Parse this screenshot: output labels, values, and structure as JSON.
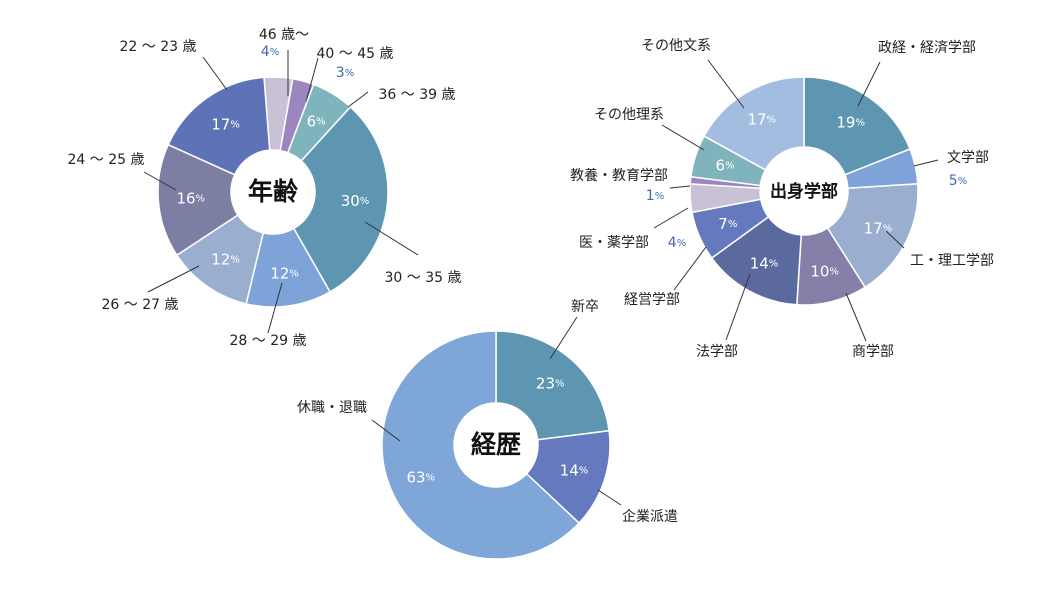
{
  "chart_data": [
    {
      "type": "pie",
      "title": "年齢",
      "unit": "%",
      "colors": {
        "a46": "#c9c2d6",
        "a40": "#9b86c0",
        "a36": "#7fb4bc",
        "a30": "#5e96b1",
        "a28": "#7ea3d8",
        "a26": "#9aaed0",
        "a24": "#7d7ea4",
        "a22": "#5e72b7"
      },
      "slices": [
        {
          "label": "46 歳～",
          "value": 4,
          "value_label": "4%",
          "color_key": "a46",
          "pct_inside": false
        },
        {
          "label": "40 ～ 45 歳",
          "value": 3,
          "value_label": "3%",
          "color_key": "a40",
          "pct_inside": false
        },
        {
          "label": "36 ～ 39 歳",
          "value": 6,
          "value_label": "6%",
          "color_key": "a36",
          "pct_inside": true
        },
        {
          "label": "30 ～ 35 歳",
          "value": 30,
          "value_label": "30%",
          "color_key": "a30",
          "pct_inside": true
        },
        {
          "label": "28 ～ 29 歳",
          "value": 12,
          "value_label": "12%",
          "color_key": "a28",
          "pct_inside": true
        },
        {
          "label": "26 ～ 27 歳",
          "value": 12,
          "value_label": "12%",
          "color_key": "a26",
          "pct_inside": true
        },
        {
          "label": "24 ～ 25 歳",
          "value": 16,
          "value_label": "16%",
          "color_key": "a24",
          "pct_inside": true
        },
        {
          "label": "22 ～ 23 歳",
          "value": 17,
          "value_label": "17%",
          "color_key": "a22",
          "pct_inside": true
        }
      ]
    },
    {
      "type": "pie",
      "title": "出身学部",
      "unit": "%",
      "colors": {
        "seikei": "#5e96b1",
        "bun": "#7ea3d8",
        "riko": "#9aaed0",
        "sho": "#8480a8",
        "ho": "#5a6a9e",
        "keiei": "#6579bf",
        "iyaku": "#c9c2d6",
        "kyoiku": "#9b86c0",
        "sonotari": "#7fb4bc",
        "sonotabun": "#a3bde0"
      },
      "slices": [
        {
          "label": "政経・経済学部",
          "value": 19,
          "value_label": "19%",
          "color_key": "seikei",
          "pct_inside": true
        },
        {
          "label": "文学部",
          "value": 5,
          "value_label": "5%",
          "color_key": "bun",
          "pct_inside": false
        },
        {
          "label": "工・理工学部",
          "value": 17,
          "value_label": "17%",
          "color_key": "riko",
          "pct_inside": true
        },
        {
          "label": "商学部",
          "value": 10,
          "value_label": "10%",
          "color_key": "sho",
          "pct_inside": true
        },
        {
          "label": "法学部",
          "value": 14,
          "value_label": "14%",
          "color_key": "ho",
          "pct_inside": true
        },
        {
          "label": "経営学部",
          "value": 7,
          "value_label": "7%",
          "color_key": "keiei",
          "pct_inside": true
        },
        {
          "label": "医・薬学部",
          "value": 4,
          "value_label": "4%",
          "color_key": "iyaku",
          "pct_inside": false
        },
        {
          "label": "教養・教育学部",
          "value": 1,
          "value_label": "1%",
          "color_key": "kyoiku",
          "pct_inside": false
        },
        {
          "label": "その他理系",
          "value": 6,
          "value_label": "6%",
          "color_key": "sonotari",
          "pct_inside": true
        },
        {
          "label": "その他文系",
          "value": 17,
          "value_label": "17%",
          "color_key": "sonotabun",
          "pct_inside": true
        }
      ]
    },
    {
      "type": "pie",
      "title": "経歴",
      "unit": "%",
      "colors": {
        "shinsotsu": "#5e96b1",
        "kigyo": "#6579bf",
        "kyushoku": "#7fa6d8"
      },
      "slices": [
        {
          "label": "新卒",
          "value": 23,
          "value_label": "23%",
          "color_key": "shinsotsu",
          "pct_inside": true
        },
        {
          "label": "企業派遣",
          "value": 14,
          "value_label": "14%",
          "color_key": "kigyo",
          "pct_inside": true
        },
        {
          "label": "休職・退職",
          "value": 63,
          "value_label": "63%",
          "color_key": "kyushoku",
          "pct_inside": true
        }
      ]
    }
  ]
}
